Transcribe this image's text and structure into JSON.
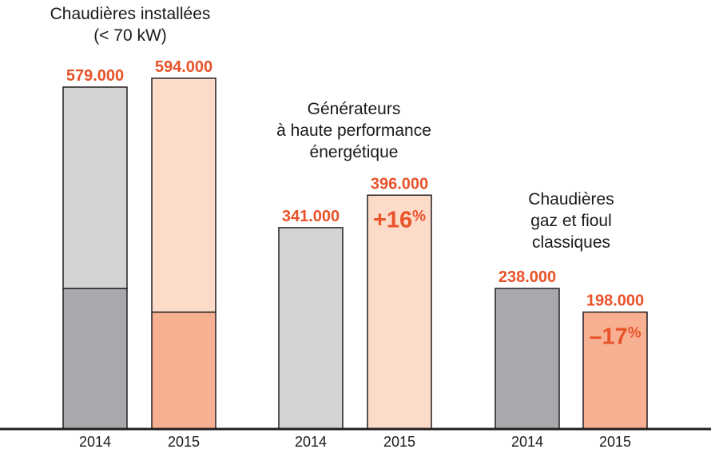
{
  "chart_data": {
    "type": "bar",
    "colors": {
      "gray_light": "#d2d3d5",
      "gray_dark": "#a8a9ac",
      "orange_light": "#fcdbc9",
      "orange_dark": "#f8b093",
      "stroke": "#231f20",
      "label": "#e8532a"
    },
    "groups": [
      {
        "title": [
          "Chaudières installées",
          "(< 70 kW)"
        ],
        "bars": [
          {
            "year": "2014",
            "value": 579000,
            "label": "579.000",
            "palette": "gray",
            "segments": [
              341000,
              238000
            ]
          },
          {
            "year": "2015",
            "value": 594000,
            "label": "594.000",
            "palette": "orange",
            "segments": [
              396000,
              198000
            ]
          }
        ]
      },
      {
        "title": [
          "Générateurs",
          "à haute performance",
          "énergétique"
        ],
        "bars": [
          {
            "year": "2014",
            "value": 341000,
            "label": "341.000",
            "palette": "gray",
            "segments": [
              341000
            ]
          },
          {
            "year": "2015",
            "value": 396000,
            "label": "396.000",
            "palette": "orange",
            "segments": [
              396000
            ],
            "change": {
              "num": "+16",
              "sym": "%"
            }
          }
        ]
      },
      {
        "title": [
          "Chaudières",
          "gaz et fioul",
          "classiques"
        ],
        "bars": [
          {
            "year": "2014",
            "value": 238000,
            "label": "238.000",
            "palette": "gray-dark",
            "segments": [
              238000
            ]
          },
          {
            "year": "2015",
            "value": 198000,
            "label": "198.000",
            "palette": "orange-dark",
            "segments": [
              198000
            ],
            "change": {
              "num": "–17",
              "sym": "%"
            }
          }
        ]
      }
    ],
    "ylim": [
      0,
      600000
    ]
  }
}
